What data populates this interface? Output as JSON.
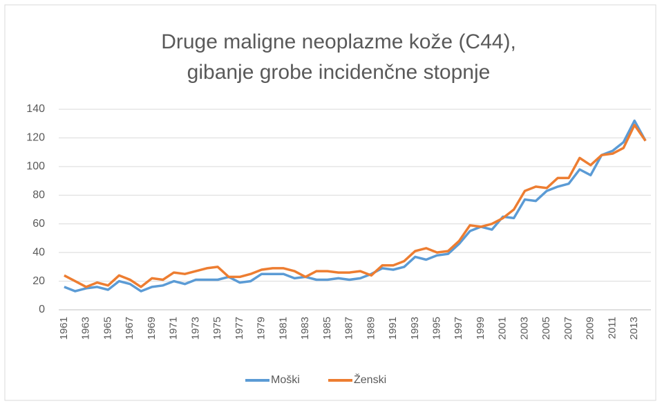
{
  "chart_data": {
    "type": "line",
    "title": [
      "Druge maligne neoplazme kože (C44),",
      "gibanje grobe incidenčne stopnje"
    ],
    "categories": [
      "1961",
      null,
      "1963",
      null,
      "1965",
      null,
      "1967",
      null,
      "1969",
      null,
      "1971",
      null,
      "1973",
      null,
      "1975",
      null,
      "1977",
      null,
      "1979",
      null,
      "1981",
      null,
      "1983",
      null,
      "1985",
      null,
      "1987",
      null,
      "1989",
      null,
      "1991",
      null,
      "1993",
      null,
      "1995",
      null,
      "1997",
      null,
      "1999",
      null,
      "2001",
      null,
      "2003",
      null,
      "2005",
      null,
      "2007",
      null,
      "2009",
      null,
      "2011",
      null,
      "2013",
      null
    ],
    "series": [
      {
        "name": "Moški",
        "color": "#5b9bd5",
        "values": [
          16,
          13,
          15,
          16,
          14,
          20,
          18,
          13,
          16,
          17,
          20,
          18,
          21,
          21,
          21,
          23,
          19,
          20,
          25,
          25,
          25,
          22,
          23,
          21,
          21,
          22,
          21,
          22,
          25,
          29,
          28,
          30,
          37,
          35,
          38,
          39,
          46,
          55,
          58,
          56,
          65,
          64,
          77,
          76,
          83,
          86,
          88,
          98,
          94,
          108,
          111,
          117,
          132,
          118
        ]
      },
      {
        "name": "Ženski",
        "color": "#ed7d31",
        "values": [
          24,
          20,
          16,
          19,
          17,
          24,
          21,
          16,
          22,
          21,
          26,
          25,
          27,
          29,
          30,
          23,
          23,
          25,
          28,
          29,
          29,
          27,
          23,
          27,
          27,
          26,
          26,
          27,
          24,
          31,
          31,
          34,
          41,
          43,
          40,
          41,
          48,
          59,
          58,
          60,
          64,
          70,
          83,
          86,
          85,
          92,
          92,
          106,
          101,
          108,
          109,
          113,
          129,
          118
        ]
      }
    ],
    "ylim": [
      0,
      140
    ],
    "yticks": [
      0,
      20,
      40,
      60,
      80,
      100,
      120,
      140
    ],
    "grid": true,
    "legend": "bottom"
  }
}
